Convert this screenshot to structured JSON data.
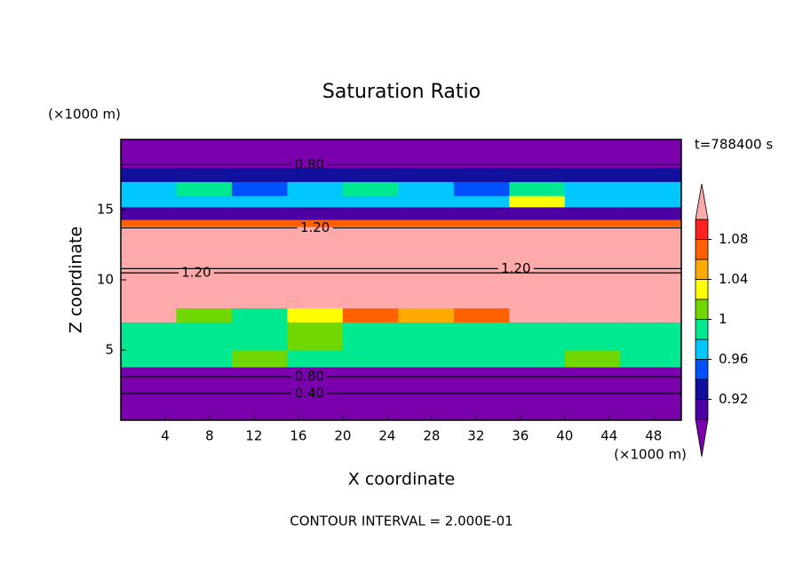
{
  "chart_data": {
    "type": "contour",
    "title": "Saturation Ratio",
    "time_label": "t=788400 s",
    "x_label": "X coordinate",
    "y_label": "Z coordinate",
    "x_unit": "(×1000 m)",
    "y_unit": "(×1000 m)",
    "footer": "CONTOUR INTERVAL = 2.000E-01",
    "xlim": [
      0,
      50.5
    ],
    "ylim": [
      0,
      20
    ],
    "xticks": [
      4,
      8,
      12,
      16,
      20,
      24,
      28,
      32,
      36,
      40,
      44,
      48
    ],
    "yticks": [
      5,
      10,
      15
    ],
    "field": {
      "x_edges": [
        0,
        5,
        10,
        15,
        20,
        25,
        30,
        35,
        40,
        45,
        50.5
      ],
      "z_edges": [
        0,
        3.3,
        3.8,
        5,
        7,
        8,
        13.8,
        14.3,
        15.2,
        16,
        17,
        18,
        20
      ],
      "values": [
        [
          0.5,
          0.5,
          0.5,
          0.5,
          0.5,
          0.5,
          0.5,
          0.5,
          0.5,
          0.5
        ],
        [
          0.85,
          0.85,
          0.85,
          0.85,
          0.85,
          0.85,
          0.85,
          0.85,
          0.85,
          0.85
        ],
        [
          0.99,
          0.98,
          1.01,
          0.99,
          0.98,
          0.99,
          0.98,
          0.99,
          1.01,
          0.99
        ],
        [
          0.99,
          0.98,
          0.99,
          1.01,
          0.99,
          0.98,
          0.99,
          0.99,
          0.98,
          0.99
        ],
        [
          1.12,
          1.01,
          0.99,
          1.03,
          1.06,
          1.05,
          1.07,
          1.12,
          1.12,
          1.12
        ],
        [
          1.2,
          1.2,
          1.2,
          1.2,
          1.2,
          1.2,
          1.2,
          1.2,
          1.2,
          1.2
        ],
        [
          1.07,
          1.07,
          1.07,
          1.07,
          1.07,
          1.07,
          1.07,
          1.07,
          1.07,
          1.07
        ],
        [
          0.91,
          0.91,
          0.91,
          0.91,
          0.91,
          0.91,
          0.91,
          0.91,
          0.91,
          0.91
        ],
        [
          0.97,
          0.96,
          0.97,
          0.96,
          0.97,
          0.96,
          0.97,
          1.03,
          0.97,
          0.97
        ],
        [
          0.97,
          0.98,
          0.95,
          0.97,
          0.98,
          0.96,
          0.95,
          0.98,
          0.96,
          0.97
        ],
        [
          0.93,
          0.93,
          0.93,
          0.93,
          0.93,
          0.93,
          0.93,
          0.93,
          0.93,
          0.93
        ],
        [
          0.8,
          0.8,
          0.8,
          0.8,
          0.8,
          0.8,
          0.8,
          0.8,
          0.8,
          0.8
        ]
      ]
    },
    "contour_labels": [
      {
        "text": "0.80",
        "x": 17,
        "z": 18.2
      },
      {
        "text": "1.20",
        "x": 17.5,
        "z": 13.7
      },
      {
        "text": "1.20",
        "x": 6.8,
        "z": 10.5
      },
      {
        "text": "1.20",
        "x": 35.6,
        "z": 10.8
      },
      {
        "text": "0.80",
        "x": 17,
        "z": 3.1
      },
      {
        "text": "0.40",
        "x": 17,
        "z": 1.9
      }
    ],
    "colorbar": {
      "levels": [
        0.9,
        0.92,
        0.94,
        0.96,
        0.98,
        1,
        1.02,
        1.04,
        1.06,
        1.08,
        1.1
      ],
      "colors": [
        "#4c00a4",
        "#10109c",
        "#0050ff",
        "#00c8ff",
        "#00e890",
        "#70d800",
        "#ffff00",
        "#ffaa00",
        "#ff6000",
        "#ff2020"
      ],
      "under_color": "#7a00ae",
      "over_color": "#ffaaaa",
      "ticks": [
        0.92,
        0.96,
        1,
        1.04,
        1.08
      ]
    }
  }
}
